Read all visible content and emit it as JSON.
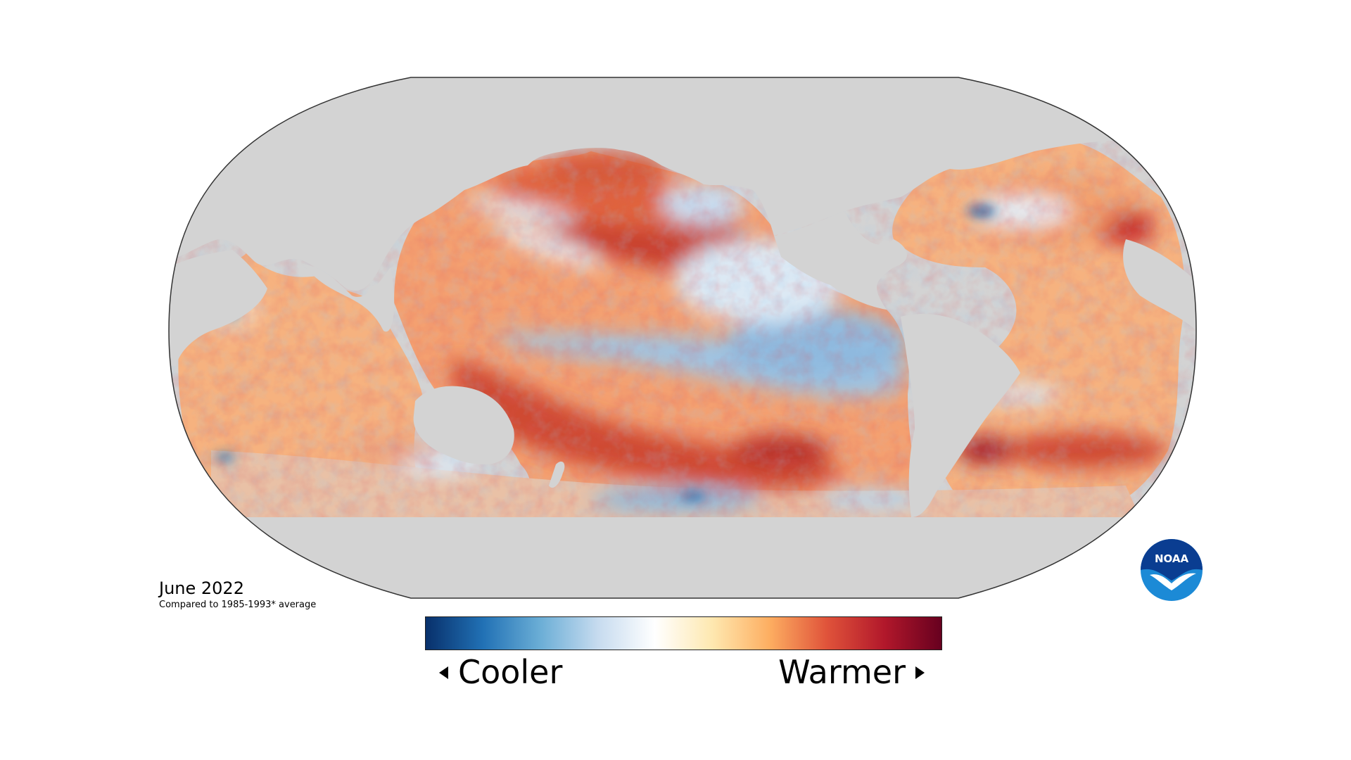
{
  "map": {
    "title": "June 2022",
    "subtitle": "Compared to 1985-1993* average",
    "projection": "Robinson",
    "land_color": "#d3d3d3",
    "border_color": "#333333"
  },
  "legend": {
    "low_label": "Cooler",
    "high_label": "Warmer",
    "scale_colors": [
      "#08306b",
      "#2171b5",
      "#6baed6",
      "#c6dbef",
      "#ffffff",
      "#fee8b0",
      "#fdae61",
      "#e0533a",
      "#b2182b",
      "#67001f"
    ]
  },
  "logo": {
    "text": "NOAA",
    "primary_color": "#0a3d91",
    "accent_color": "#1c8ad6"
  }
}
